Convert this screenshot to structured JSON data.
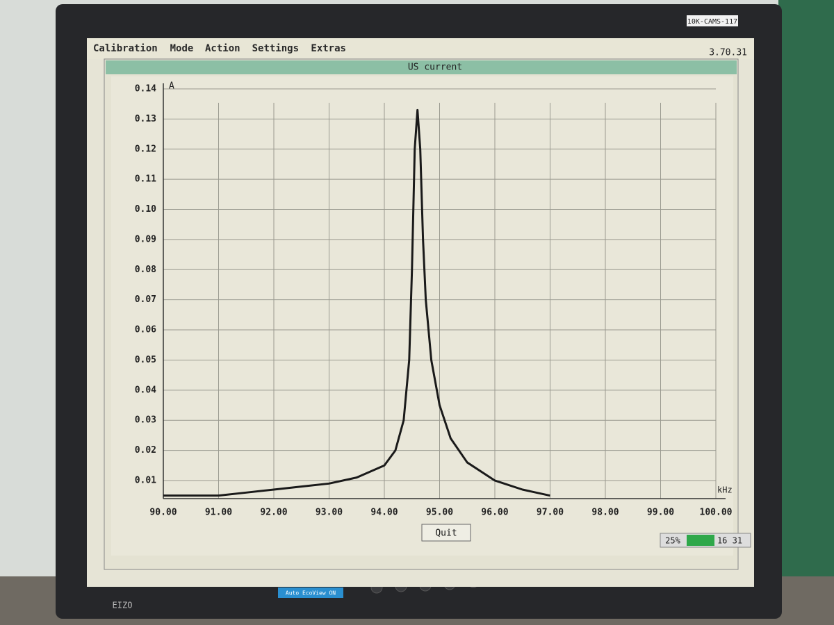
{
  "monitor": {
    "asset_tag": "10K-CAMS-117",
    "brand": "EIZO",
    "eco_label": "Auto EcoView ON"
  },
  "menu": {
    "items": [
      "Calibration",
      "Mode",
      "Action",
      "Settings",
      "Extras"
    ],
    "version": "3.70.31"
  },
  "window": {
    "title": "US current",
    "button": "Quit"
  },
  "status": {
    "percent": "25%",
    "time": "16 31"
  },
  "chart_data": {
    "type": "line",
    "y_label": "A",
    "x_label": "kHz",
    "x": [
      90.0,
      91.0,
      91.5,
      92.0,
      92.5,
      93.0,
      93.5,
      94.0,
      94.2,
      94.35,
      94.45,
      94.5,
      94.55,
      94.6,
      94.65,
      94.7,
      94.75,
      94.85,
      95.0,
      95.2,
      95.5,
      96.0,
      96.5,
      97.0
    ],
    "values": [
      0.005,
      0.005,
      0.006,
      0.007,
      0.008,
      0.009,
      0.011,
      0.015,
      0.02,
      0.03,
      0.05,
      0.08,
      0.12,
      0.133,
      0.12,
      0.09,
      0.07,
      0.05,
      0.035,
      0.024,
      0.016,
      0.01,
      0.007,
      0.005
    ],
    "color": "#1a1a1a",
    "xlim": [
      90,
      100
    ],
    "ylim": [
      0.004,
      0.14
    ],
    "xticks": [
      {
        "value": 90,
        "label": "90.00"
      },
      {
        "value": 91,
        "label": "91.00"
      },
      {
        "value": 92,
        "label": "92.00"
      },
      {
        "value": 93,
        "label": "93.00"
      },
      {
        "value": 94,
        "label": "94.00"
      },
      {
        "value": 95,
        "label": "95.00"
      },
      {
        "value": 96,
        "label": "96.00"
      },
      {
        "value": 97,
        "label": "97.00"
      },
      {
        "value": 98,
        "label": "98.00"
      },
      {
        "value": 99,
        "label": "99.00"
      },
      {
        "value": 100,
        "label": "100.00"
      }
    ],
    "yticks": [
      0.01,
      0.02,
      0.03,
      0.04,
      0.05,
      0.06,
      0.07,
      0.08,
      0.09,
      {
        "value": 0.1,
        "label": "0.10"
      },
      0.11,
      0.12,
      0.13,
      0.14
    ],
    "grid": true
  }
}
